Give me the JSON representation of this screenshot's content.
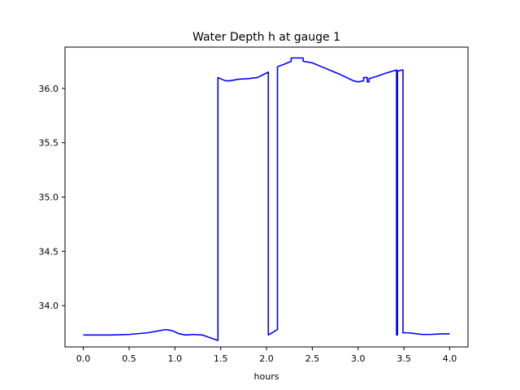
{
  "chart_data": {
    "type": "line",
    "title": "Water Depth h at gauge 1",
    "xlabel": "hours",
    "ylabel": "",
    "xlim": [
      -0.2,
      4.2
    ],
    "ylim": [
      33.62,
      36.38
    ],
    "xticks": [
      0.0,
      0.5,
      1.0,
      1.5,
      2.0,
      2.5,
      3.0,
      3.5,
      4.0
    ],
    "xtick_labels": [
      "0.0",
      "0.5",
      "1.0",
      "1.5",
      "2.0",
      "2.5",
      "3.0",
      "3.5",
      "4.0"
    ],
    "yticks": [
      34.0,
      34.5,
      35.0,
      35.5,
      36.0
    ],
    "ytick_labels": [
      "34.0",
      "34.5",
      "35.0",
      "35.5",
      "36.0"
    ],
    "grid": false,
    "series": [
      {
        "color": "#0000ff",
        "x": [
          0.0,
          0.3,
          0.5,
          0.7,
          0.8,
          0.9,
          0.97,
          1.05,
          1.12,
          1.2,
          1.3,
          1.4,
          1.47,
          1.47,
          1.55,
          1.6,
          1.7,
          1.8,
          1.9,
          1.95,
          2.02,
          2.02,
          2.12,
          2.12,
          2.2,
          2.27,
          2.27,
          2.4,
          2.4,
          2.5,
          2.6,
          2.7,
          2.8,
          2.9,
          2.95,
          3.0,
          3.06,
          3.06,
          3.1,
          3.1,
          3.12,
          3.12,
          3.2,
          3.3,
          3.42,
          3.42,
          3.43,
          3.43,
          3.49,
          3.49,
          3.55,
          3.6,
          3.7,
          3.8,
          3.9,
          4.0
        ],
        "y": [
          33.73,
          33.73,
          33.735,
          33.75,
          33.765,
          33.78,
          33.77,
          33.74,
          33.73,
          33.735,
          33.73,
          33.7,
          33.68,
          36.1,
          36.07,
          36.07,
          36.085,
          36.09,
          36.1,
          36.12,
          36.15,
          33.73,
          33.78,
          36.2,
          36.225,
          36.25,
          36.28,
          36.28,
          36.25,
          36.235,
          36.2,
          36.165,
          36.13,
          36.09,
          36.07,
          36.06,
          36.07,
          36.1,
          36.1,
          36.06,
          36.06,
          36.09,
          36.11,
          36.14,
          36.17,
          33.73,
          33.73,
          36.16,
          36.17,
          33.75,
          33.75,
          33.745,
          33.735,
          33.735,
          33.74,
          33.74
        ]
      }
    ]
  }
}
